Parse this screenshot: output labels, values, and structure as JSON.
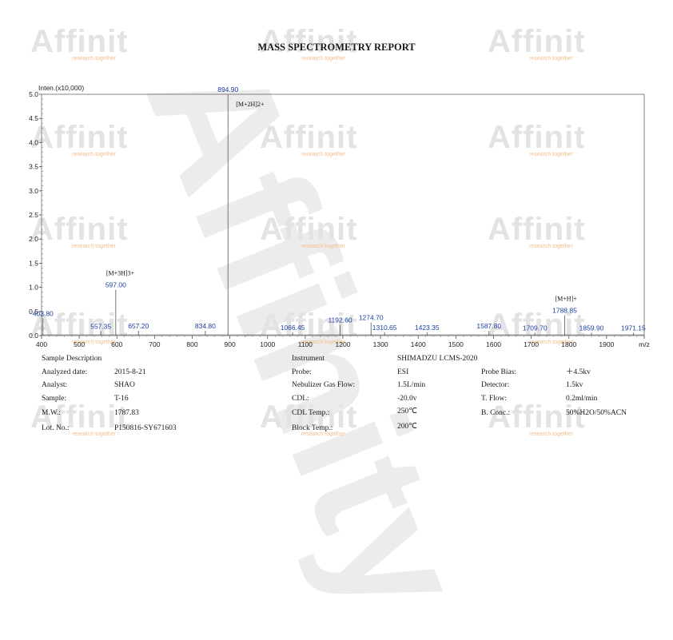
{
  "report": {
    "title": "MASS SPECTROMETRY REPORT"
  },
  "watermark": {
    "logo_text": "Affinit",
    "tagline": "research together",
    "big_text": "Affinity"
  },
  "chart_data": {
    "type": "line",
    "ylabel": "Inten.(x10,000)",
    "xlabel": "m/z",
    "xlim": [
      400,
      2000
    ],
    "ylim": [
      0,
      5.0
    ],
    "x_ticks": [
      400,
      500,
      600,
      700,
      800,
      900,
      1000,
      1100,
      1200,
      1300,
      1400,
      1500,
      1600,
      1700,
      1800,
      1900,
      2000
    ],
    "x_tick_labels": [
      "400",
      "500",
      "600",
      "700",
      "800",
      "900",
      "1000",
      "1100",
      "1200",
      "1300",
      "1400",
      "1500",
      "1600",
      "1700",
      "1800",
      "1900",
      "m/z"
    ],
    "y_ticks": [
      0.0,
      0.5,
      1.0,
      1.5,
      2.0,
      2.5,
      3.0,
      3.5,
      4.0,
      4.5,
      5.0
    ],
    "y_tick_labels": [
      "0.0",
      "0.5",
      "1.0",
      "1.5",
      "2.0",
      "2.5",
      "3.0",
      "3.5",
      "4.0",
      "4.5",
      "5.0"
    ],
    "peaks": [
      {
        "mz": 403.8,
        "intensity": 0.36,
        "label": "403.80"
      },
      {
        "mz": 557.35,
        "intensity": 0.09,
        "label": "557.35"
      },
      {
        "mz": 597.0,
        "intensity": 0.95,
        "label": "597.00"
      },
      {
        "mz": 657.2,
        "intensity": 0.1,
        "label": "657.20"
      },
      {
        "mz": 834.8,
        "intensity": 0.1,
        "label": "834.80"
      },
      {
        "mz": 894.9,
        "intensity": 5.0,
        "label": "894.90"
      },
      {
        "mz": 1066.45,
        "intensity": 0.07,
        "label": "1066.45"
      },
      {
        "mz": 1192.6,
        "intensity": 0.22,
        "label": "1192.60"
      },
      {
        "mz": 1274.7,
        "intensity": 0.27,
        "label": "1274.70"
      },
      {
        "mz": 1310.65,
        "intensity": 0.07,
        "label": "1310.65"
      },
      {
        "mz": 1423.35,
        "intensity": 0.07,
        "label": "1423.35"
      },
      {
        "mz": 1587.8,
        "intensity": 0.1,
        "label": "1587.80"
      },
      {
        "mz": 1709.7,
        "intensity": 0.06,
        "label": "1709.70"
      },
      {
        "mz": 1788.85,
        "intensity": 0.42,
        "label": "1788.85"
      },
      {
        "mz": 1859.9,
        "intensity": 0.06,
        "label": "1859.90"
      },
      {
        "mz": 1971.15,
        "intensity": 0.06,
        "label": "1971.15"
      }
    ],
    "annotations": [
      {
        "text": "[M+2H]2+",
        "mz": 894.9
      },
      {
        "text": "[M+3H]3+",
        "mz": 597.0
      },
      {
        "text": "[M+H]+",
        "mz": 1788.85
      }
    ],
    "colors": {
      "line": "#555555",
      "peak_label": "#1a3fa0"
    }
  },
  "sample": {
    "heading": "Sample Description",
    "rows": [
      {
        "label": "Analyzed date:",
        "value": "2015-8-21"
      },
      {
        "label": "Analyst:",
        "value": "SHAO"
      },
      {
        "label": "Sample:",
        "value": "T-16"
      },
      {
        "label": "M.W.:",
        "value": "1787.83"
      },
      {
        "label": "Lot. No.:",
        "value": "P150816-SY671603"
      }
    ]
  },
  "instrument": {
    "heading": "Instrument",
    "model": "SHIMADZU LCMS-2020",
    "rows": [
      {
        "label": "Probe:",
        "value": "ESI"
      },
      {
        "label": "Nebulizer Gas Flow:",
        "value": "1.5L/min"
      },
      {
        "label": "CDL:",
        "value": "-20.0v"
      },
      {
        "label": "CDL Temp.:",
        "value": "250℃"
      },
      {
        "label": "Block Temp.:",
        "value": "200℃"
      }
    ],
    "rows_right": [
      {
        "label": "Probe Bias:",
        "value": "＋4.5kv"
      },
      {
        "label": "Detector:",
        "value": "1.5kv"
      },
      {
        "label": "T. Flow:",
        "value": "0.2ml/min"
      },
      {
        "label": "B. Conc.:",
        "value": "50%H2O/50%ACN"
      }
    ]
  }
}
